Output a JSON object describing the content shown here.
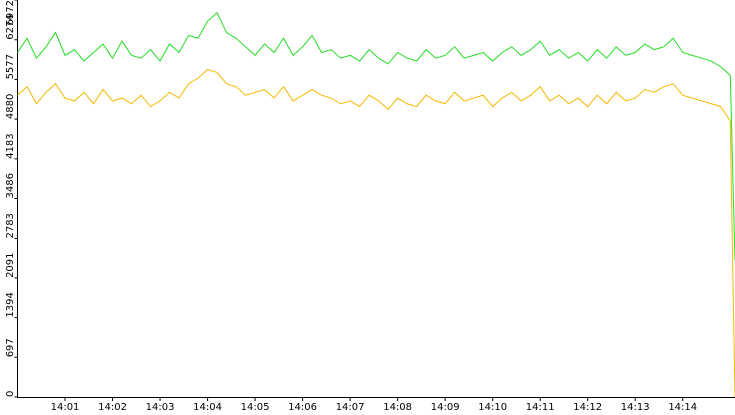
{
  "chart_data": {
    "type": "line",
    "x": [
      840.0,
      840.2,
      840.4,
      840.6,
      840.8,
      841.0,
      841.2,
      841.4,
      841.6,
      841.8,
      842.0,
      842.2,
      842.4,
      842.6,
      842.8,
      843.0,
      843.2,
      843.4,
      843.6,
      843.8,
      844.0,
      844.2,
      844.4,
      844.6,
      844.8,
      845.0,
      845.2,
      845.4,
      845.6,
      845.8,
      846.0,
      846.2,
      846.4,
      846.6,
      846.8,
      847.0,
      847.2,
      847.4,
      847.6,
      847.8,
      848.0,
      848.2,
      848.4,
      848.6,
      848.8,
      849.0,
      849.2,
      849.4,
      849.6,
      849.8,
      850.0,
      850.2,
      850.4,
      850.6,
      850.8,
      851.0,
      851.2,
      851.4,
      851.6,
      851.8,
      852.0,
      852.2,
      852.4,
      852.6,
      852.8,
      853.0,
      853.2,
      853.4,
      853.6,
      853.8,
      854.0,
      854.2,
      854.4,
      854.6,
      854.8,
      855.0,
      855.1
    ],
    "series": [
      {
        "color": "#22dd22",
        "values": [
          6050,
          6300,
          5950,
          6150,
          6400,
          6000,
          6100,
          5900,
          6050,
          6200,
          5950,
          6250,
          6000,
          5950,
          6100,
          5900,
          6200,
          6050,
          6350,
          6300,
          6600,
          6750,
          6400,
          6300,
          6150,
          6000,
          6200,
          6050,
          6300,
          6000,
          6150,
          6350,
          6050,
          6100,
          5950,
          6000,
          5900,
          6100,
          5950,
          5850,
          6050,
          5950,
          5900,
          6100,
          5950,
          6000,
          6150,
          5950,
          6000,
          6050,
          5900,
          6050,
          6150,
          6000,
          6100,
          6250,
          6000,
          6100,
          5950,
          6050,
          5900,
          6100,
          5950,
          6150,
          6000,
          6050,
          6200,
          6100,
          6150,
          6300,
          6050,
          6000,
          5950,
          5900,
          5800,
          5650,
          2400
        ]
      },
      {
        "color": "#f5b800",
        "values": [
          5300,
          5450,
          5150,
          5350,
          5500,
          5250,
          5200,
          5350,
          5150,
          5400,
          5200,
          5250,
          5150,
          5300,
          5100,
          5200,
          5350,
          5250,
          5500,
          5600,
          5750,
          5700,
          5500,
          5450,
          5300,
          5350,
          5400,
          5250,
          5450,
          5200,
          5300,
          5400,
          5300,
          5250,
          5150,
          5200,
          5100,
          5300,
          5200,
          5050,
          5250,
          5150,
          5100,
          5300,
          5200,
          5150,
          5350,
          5200,
          5250,
          5300,
          5100,
          5250,
          5350,
          5200,
          5300,
          5450,
          5200,
          5300,
          5150,
          5250,
          5100,
          5300,
          5150,
          5350,
          5200,
          5250,
          5400,
          5350,
          5450,
          5500,
          5300,
          5250,
          5200,
          5150,
          5100,
          4850,
          0
        ]
      }
    ],
    "xlim": [
      840,
      855.1
    ],
    "xticks": [
      {
        "value": 841,
        "label": "14:01"
      },
      {
        "value": 842,
        "label": "14:02"
      },
      {
        "value": 843,
        "label": "14:03"
      },
      {
        "value": 844,
        "label": "14:04"
      },
      {
        "value": 845,
        "label": "14:05"
      },
      {
        "value": 846,
        "label": "14:06"
      },
      {
        "value": 847,
        "label": "14:07"
      },
      {
        "value": 848,
        "label": "14:08"
      },
      {
        "value": 849,
        "label": "14:09"
      },
      {
        "value": 850,
        "label": "14:10"
      },
      {
        "value": 851,
        "label": "14:11"
      },
      {
        "value": 852,
        "label": "14:12"
      },
      {
        "value": 853,
        "label": "14:13"
      },
      {
        "value": 854,
        "label": "14:14"
      }
    ],
    "ylim": [
      0,
      6972
    ],
    "yticks": [
      0,
      697,
      1394,
      2091,
      2783,
      3486,
      4183,
      4880,
      5577,
      6274,
      6972
    ]
  }
}
